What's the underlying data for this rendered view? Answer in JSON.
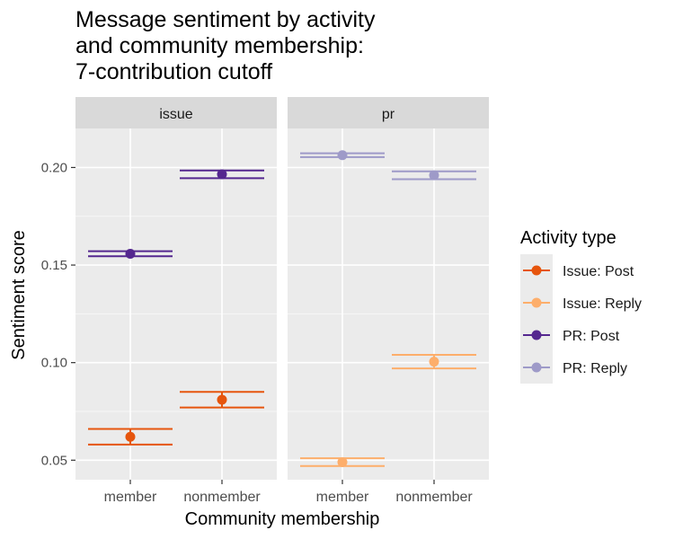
{
  "chart_data": {
    "type": "scatter",
    "title": "Message sentiment by activity and community membership: 7-contribution cutoff",
    "title_lines": [
      "Message sentiment by activity",
      "and community membership:",
      "7-contribution cutoff"
    ],
    "xlabel": "Community membership",
    "ylabel": "Sentiment score",
    "ylim": [
      0.04,
      0.22
    ],
    "yticks": [
      0.05,
      0.1,
      0.15,
      0.2
    ],
    "ytick_labels": [
      "0.05",
      "0.10",
      "0.15",
      "0.20"
    ],
    "categories": [
      "member",
      "nonmember"
    ],
    "facets": [
      "issue",
      "pr"
    ],
    "grid": true,
    "legend": {
      "title": "Activity type",
      "placement": "right",
      "entries": [
        "Issue: Post",
        "Issue: Reply",
        "PR: Post",
        "PR: Reply"
      ]
    },
    "series": [
      {
        "name": "Issue: Post",
        "facet": "issue",
        "color": "#E6550D",
        "points": [
          {
            "x": "member",
            "y": 0.062,
            "ymin": 0.058,
            "ymax": 0.066
          },
          {
            "x": "nonmember",
            "y": 0.081,
            "ymin": 0.077,
            "ymax": 0.085
          }
        ]
      },
      {
        "name": "Issue: Reply",
        "facet": "pr",
        "color": "#FDAE6B",
        "points": [
          {
            "x": "member",
            "y": 0.049,
            "ymin": 0.047,
            "ymax": 0.051
          },
          {
            "x": "nonmember",
            "y": 0.1005,
            "ymin": 0.097,
            "ymax": 0.104
          }
        ]
      },
      {
        "name": "PR: Post",
        "facet": "issue",
        "color": "#54278F",
        "points": [
          {
            "x": "member",
            "y": 0.1558,
            "ymin": 0.1545,
            "ymax": 0.1571
          },
          {
            "x": "nonmember",
            "y": 0.1965,
            "ymin": 0.1945,
            "ymax": 0.1985
          }
        ]
      },
      {
        "name": "PR: Reply",
        "facet": "pr",
        "color": "#9E9AC8",
        "points": [
          {
            "x": "member",
            "y": 0.2063,
            "ymin": 0.2053,
            "ymax": 0.2073
          },
          {
            "x": "nonmember",
            "y": 0.196,
            "ymin": 0.194,
            "ymax": 0.198
          }
        ]
      }
    ]
  }
}
